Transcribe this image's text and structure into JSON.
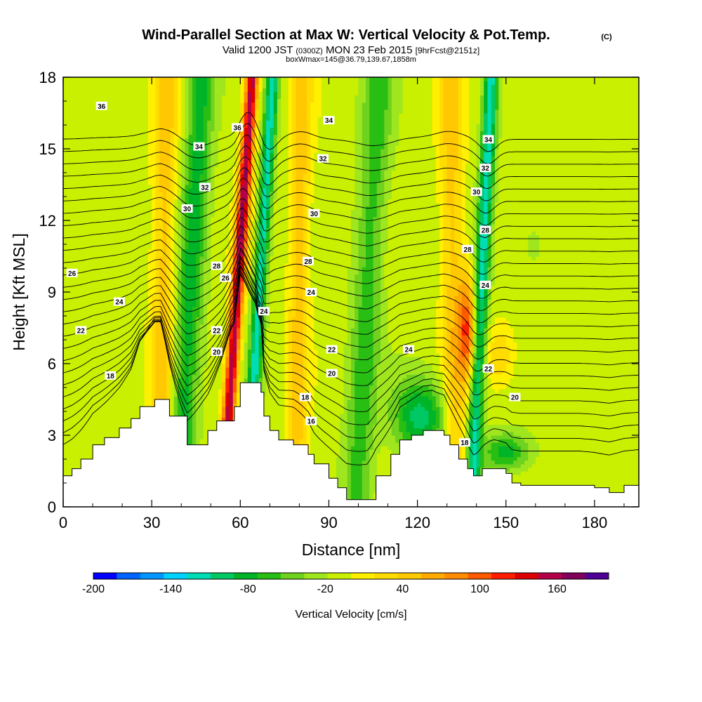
{
  "chart_data": {
    "type": "heatmap",
    "title": "Wind-Parallel Section at Max W: Vertical Velocity & Pot.Temp.",
    "title_mark": "(C)",
    "subtitle": {
      "prefix": "Valid 1200 JST",
      "utc": "(0300Z)",
      "date": "MON 23 Feb 2015",
      "fcst": "[9hrFcst@2151z]"
    },
    "box_line": "boxWmax=145@36.79,139.67,1858m",
    "xlabel": "Distance [nm]",
    "ylabel": "Height [Kft MSL]",
    "xlim": [
      0,
      195
    ],
    "ylim": [
      0,
      18
    ],
    "x_ticks": [
      "0",
      "30",
      "60",
      "90",
      "120",
      "150",
      "180"
    ],
    "y_ticks": [
      "0",
      "3",
      "6",
      "9",
      "12",
      "15",
      "18"
    ],
    "colorbar": {
      "label": "Vertical Velocity [cm/s]",
      "range": [
        -200,
        200
      ],
      "step": 20,
      "tick_values": [
        -200,
        -140,
        -80,
        -20,
        40,
        100,
        160
      ],
      "tick_labels": [
        "-200",
        "-140",
        "-80",
        "-20",
        "40",
        "100",
        "160"
      ],
      "colors": [
        "#0000ff",
        "#0064ff",
        "#0096ff",
        "#00d2ff",
        "#00dcb4",
        "#00c864",
        "#00b428",
        "#28be14",
        "#6ed21e",
        "#a0e61e",
        "#c8f000",
        "#fff000",
        "#ffdc00",
        "#ffc800",
        "#ffaa00",
        "#ff8c00",
        "#ff5a00",
        "#ff1e00",
        "#dc0000",
        "#b40046",
        "#82005a",
        "#500096"
      ]
    },
    "bands": [
      {
        "name": "updraft",
        "x_bottom": 33,
        "x_top": 35,
        "w": 60,
        "half_width": 4
      },
      {
        "name": "downdraft",
        "x_bottom": 40,
        "x_top": 47,
        "w": -80,
        "half_width": 4.5
      },
      {
        "name": "updraft",
        "x_bottom": 55,
        "x_top": 64,
        "w": 190,
        "half_width": 2.2
      },
      {
        "name": "downdraft",
        "x_bottom": 63,
        "x_top": 71,
        "w": -120,
        "half_width": 2.2
      },
      {
        "name": "updraft",
        "x_bottom": 79,
        "x_top": 81,
        "w": 60,
        "half_width": 3.5
      },
      {
        "name": "downdraft",
        "x_bottom": 100,
        "x_top": 107,
        "w": -60,
        "half_width": 5
      },
      {
        "name": "updraft",
        "x_bottom": 133,
        "x_top": 131,
        "w": 60,
        "half_width": 4
      },
      {
        "name": "downdraft",
        "x_bottom": 139,
        "x_top": 145,
        "w": -120,
        "half_width": 2.5
      }
    ],
    "blobs": [
      {
        "name": "updraft-core",
        "x": 137,
        "y": 7.5,
        "w": 120,
        "rx": 3,
        "ry": 2.2
      },
      {
        "name": "updraft-lobe",
        "x": 148,
        "y": 6.4,
        "w": 50,
        "rx": 5,
        "ry": 1.3
      },
      {
        "name": "downdraft-lee",
        "x": 121,
        "y": 3.8,
        "w": -100,
        "rx": 9,
        "ry": 1.6
      },
      {
        "name": "downdraft-lee-2",
        "x": 150,
        "y": 2.3,
        "w": -80,
        "rx": 8,
        "ry": 0.8
      },
      {
        "name": "downdraft-upper",
        "x": 159,
        "y": 11,
        "w": -20,
        "rx": 5,
        "ry": 1.5
      }
    ],
    "terrain": {
      "x": [
        0,
        3,
        6,
        10,
        14,
        19,
        23,
        26,
        31,
        33,
        36,
        42,
        49,
        52,
        58,
        60,
        65,
        67,
        68,
        70,
        73,
        78,
        83,
        85,
        90,
        93,
        96,
        103,
        106,
        111,
        114,
        118,
        122,
        125,
        129,
        131,
        134,
        137,
        139,
        142,
        144,
        146,
        150,
        152,
        155,
        160,
        165,
        170,
        175,
        180,
        185,
        190,
        195
      ],
      "height": [
        1.3,
        1.6,
        2.0,
        2.6,
        2.9,
        3.3,
        3.7,
        4.2,
        4.5,
        4.5,
        3.8,
        2.6,
        3.2,
        3.6,
        4.2,
        5.2,
        5.2,
        4.8,
        3.8,
        3.2,
        2.8,
        2.6,
        2.2,
        1.8,
        1.2,
        0.8,
        0.3,
        0.3,
        1.3,
        2.2,
        2.8,
        3.0,
        3.2,
        3.2,
        3.0,
        2.6,
        2.0,
        1.6,
        1.3,
        1.6,
        1.6,
        1.6,
        1.4,
        1.0,
        0.9,
        0.9,
        0.9,
        0.9,
        0.9,
        0.8,
        0.6,
        0.9,
        1.0
      ]
    },
    "theta_isentropes": {
      "levels": [
        12,
        13,
        14,
        15,
        16,
        17,
        18,
        19,
        20,
        21,
        22,
        23,
        24,
        25,
        26,
        27,
        28,
        29,
        30,
        31,
        32,
        33,
        34,
        35,
        36,
        37
      ],
      "labelled_levels": [
        18,
        20,
        22,
        24,
        26,
        28,
        30,
        32,
        34,
        36
      ],
      "labels": [
        {
          "text": "36",
          "x": 13,
          "y": 16.8
        },
        {
          "text": "34",
          "x": 46,
          "y": 15.1
        },
        {
          "text": "32",
          "x": 48,
          "y": 13.4
        },
        {
          "text": "30",
          "x": 42,
          "y": 12.5
        },
        {
          "text": "28",
          "x": 52,
          "y": 10.1
        },
        {
          "text": "26",
          "x": 55,
          "y": 9.6
        },
        {
          "text": "26",
          "x": 3,
          "y": 9.8
        },
        {
          "text": "24",
          "x": 19,
          "y": 8.6
        },
        {
          "text": "22",
          "x": 6,
          "y": 7.4
        },
        {
          "text": "22",
          "x": 52,
          "y": 7.4
        },
        {
          "text": "20",
          "x": 52,
          "y": 6.5
        },
        {
          "text": "18",
          "x": 16,
          "y": 5.5
        },
        {
          "text": "36",
          "x": 59,
          "y": 15.9
        },
        {
          "text": "24",
          "x": 68,
          "y": 8.2
        },
        {
          "text": "34",
          "x": 90,
          "y": 16.2
        },
        {
          "text": "32",
          "x": 88,
          "y": 14.6
        },
        {
          "text": "30",
          "x": 85,
          "y": 12.3
        },
        {
          "text": "28",
          "x": 83,
          "y": 10.3
        },
        {
          "text": "24",
          "x": 84,
          "y": 9.0
        },
        {
          "text": "22",
          "x": 91,
          "y": 6.6
        },
        {
          "text": "20",
          "x": 91,
          "y": 5.6
        },
        {
          "text": "18",
          "x": 82,
          "y": 4.6
        },
        {
          "text": "16",
          "x": 84,
          "y": 3.6
        },
        {
          "text": "24",
          "x": 117,
          "y": 6.6
        },
        {
          "text": "34",
          "x": 144,
          "y": 15.4
        },
        {
          "text": "32",
          "x": 143,
          "y": 14.2
        },
        {
          "text": "30",
          "x": 140,
          "y": 13.2
        },
        {
          "text": "28",
          "x": 143,
          "y": 11.6
        },
        {
          "text": "28",
          "x": 137,
          "y": 10.8
        },
        {
          "text": "24",
          "x": 143,
          "y": 9.3
        },
        {
          "text": "22",
          "x": 144,
          "y": 5.8
        },
        {
          "text": "20",
          "x": 153,
          "y": 4.6
        },
        {
          "text": "18",
          "x": 136,
          "y": 2.7
        }
      ]
    }
  }
}
